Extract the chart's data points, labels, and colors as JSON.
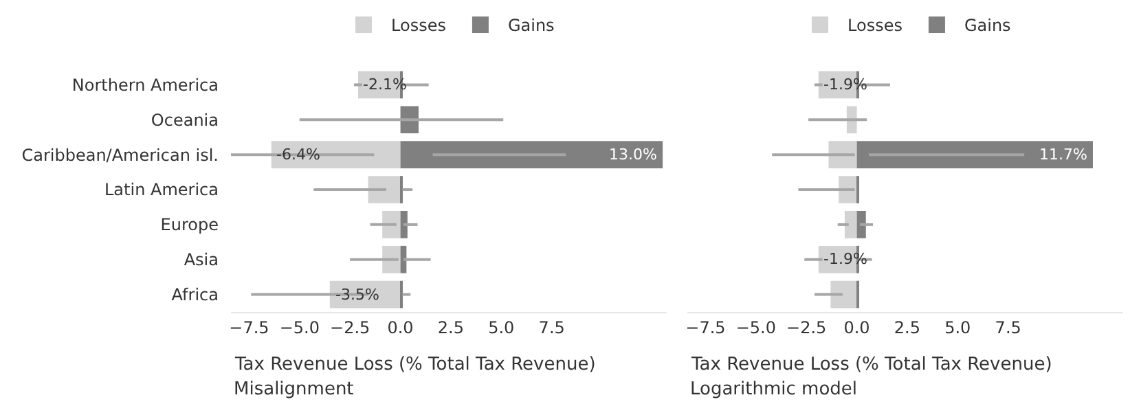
{
  "chart_data": [
    {
      "type": "bar",
      "orientation": "horizontal",
      "xlabel": "Tax Revenue Loss (% Total Tax Revenue)",
      "annotations": [
        "Misalignment"
      ],
      "categories": [
        "Northern America",
        "Oceania",
        "Caribbean/American isl.",
        "Latin America",
        "Europe",
        "Asia",
        "Africa"
      ],
      "series": [
        {
          "name": "Losses",
          "color": "#d3d3d3",
          "values": [
            -2.1,
            0,
            -6.4,
            -1.6,
            -0.9,
            -0.9,
            -3.5
          ],
          "errors": [
            [
              -2.3,
              -1.9
            ],
            null,
            [
              -8.4,
              -1.3
            ],
            [
              -4.3,
              -0.7
            ],
            [
              -1.5,
              -0.2
            ],
            [
              -2.5,
              -0.1
            ],
            [
              -7.4,
              -1.6
            ]
          ],
          "value_labels": [
            "-2.1%",
            null,
            "-6.4%",
            null,
            null,
            null,
            "-3.5%"
          ]
        },
        {
          "name": "Gains",
          "color": "#808080",
          "values": [
            0.1,
            0.9,
            13.0,
            0.1,
            0.35,
            0.3,
            0.1
          ],
          "errors": [
            [
              0.1,
              1.4
            ],
            [
              -5.0,
              5.1
            ],
            [
              1.6,
              8.2
            ],
            [
              0.1,
              0.6
            ],
            [
              0.15,
              0.85
            ],
            [
              0.15,
              1.5
            ],
            [
              0.1,
              0.5
            ]
          ],
          "value_labels": [
            null,
            null,
            "13.0%",
            null,
            null,
            null,
            null
          ]
        }
      ],
      "xlim": [
        -8.4,
        13.2
      ],
      "xticks": [
        {
          "value": -7.5,
          "label": "−7.5"
        },
        {
          "value": -5,
          "label": "−5.0"
        },
        {
          "value": -2.5,
          "label": "−2.5"
        },
        {
          "value": 0,
          "label": "0.0"
        },
        {
          "value": 2.5,
          "label": "2.5"
        },
        {
          "value": 5,
          "label": "5.0"
        },
        {
          "value": 7.5,
          "label": "7.5"
        }
      ],
      "legend": "top",
      "stacked": true
    },
    {
      "type": "bar",
      "orientation": "horizontal",
      "xlabel": "Tax Revenue Loss (% Total Tax Revenue)",
      "annotations": [
        "Logarithmic model"
      ],
      "categories": [
        null,
        null,
        null,
        null,
        null,
        null,
        null
      ],
      "series": [
        {
          "name": "Losses",
          "color": "#d3d3d3",
          "values": [
            -1.9,
            -0.5,
            -1.4,
            -0.9,
            -0.6,
            -1.9,
            -1.3
          ],
          "errors": [
            [
              -2.1,
              -1.7
            ],
            [
              -2.4,
              0.5
            ],
            [
              -4.2,
              -0.1
            ],
            [
              -2.9,
              -0.1
            ],
            [
              -0.95,
              -0.4
            ],
            [
              -2.6,
              -1.7
            ],
            [
              -2.1,
              -0.7
            ]
          ],
          "value_labels": [
            "-1.9%",
            null,
            null,
            null,
            null,
            "-1.9%",
            null
          ]
        },
        {
          "name": "Gains",
          "color": "#808080",
          "values": [
            0.1,
            0,
            11.7,
            0.1,
            0.45,
            0.1,
            0.05
          ],
          "errors": [
            [
              0.1,
              1.65
            ],
            null,
            [
              0.6,
              8.3
            ],
            null,
            [
              0.15,
              0.8
            ],
            [
              0.1,
              0.75
            ],
            null
          ],
          "value_labels": [
            null,
            null,
            "11.7%",
            null,
            null,
            null,
            null
          ]
        }
      ],
      "xlim": [
        -8.4,
        13.2
      ],
      "xticks": [
        {
          "value": -7.5,
          "label": "−7.5"
        },
        {
          "value": -5,
          "label": "−5.0"
        },
        {
          "value": -2.5,
          "label": "−2.5"
        },
        {
          "value": 0,
          "label": "0.0"
        },
        {
          "value": 2.5,
          "label": "2.5"
        },
        {
          "value": 5,
          "label": "5.0"
        },
        {
          "value": 7.5,
          "label": "7.5"
        }
      ],
      "legend": "top",
      "tick_labels": "x",
      "stacked": true
    }
  ]
}
